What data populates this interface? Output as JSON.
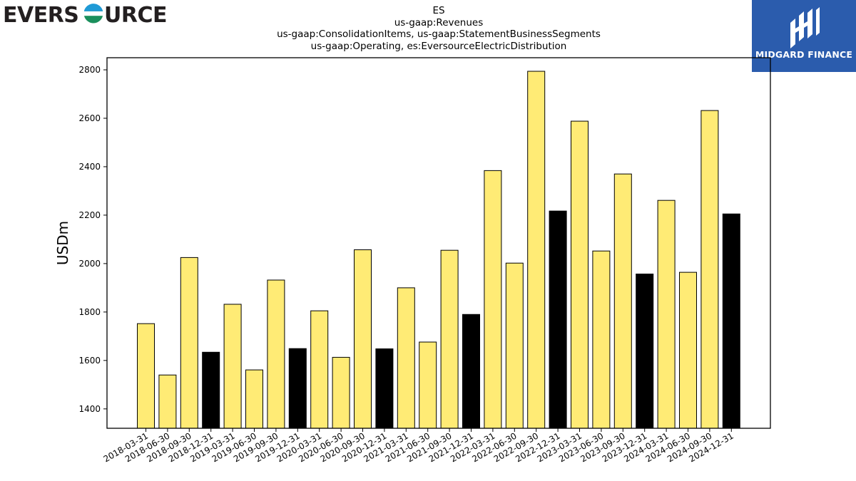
{
  "logos": {
    "left_text": "EVERSOURCE",
    "right_text": "MIDGARD FINANCE",
    "right_color": "#2b5cad"
  },
  "chart_data": {
    "type": "bar",
    "title_lines": [
      "ES",
      "us-gaap:Revenues",
      "us-gaap:ConsolidationItems, us-gaap:StatementBusinessSegments",
      "us-gaap:Operating, es:EversourceElectricDistribution"
    ],
    "xlabel": "",
    "ylabel": "USDm",
    "ylim": [
      1320,
      2850
    ],
    "yticks": [
      1400,
      1600,
      1800,
      2000,
      2200,
      2400,
      2600,
      2800
    ],
    "grid": false,
    "legend": "none",
    "colors": {
      "quarter": "#ffeb75",
      "year_end": "#000000",
      "edge": "#000000"
    },
    "categories": [
      "2018-03-31",
      "2018-06-30",
      "2018-09-30",
      "2018-12-31",
      "2019-03-31",
      "2019-06-30",
      "2019-09-30",
      "2019-12-31",
      "2020-03-31",
      "2020-06-30",
      "2020-09-30",
      "2020-12-31",
      "2021-03-31",
      "2021-06-30",
      "2021-09-30",
      "2021-12-31",
      "2022-03-31",
      "2022-06-30",
      "2022-09-30",
      "2022-12-31",
      "2023-03-31",
      "2023-06-30",
      "2023-09-30",
      "2023-12-31",
      "2024-03-31",
      "2024-06-30",
      "2024-09-30",
      "2024-12-31"
    ],
    "values": [
      1752,
      1540,
      2025,
      1634,
      1832,
      1561,
      1932,
      1649,
      1805,
      1613,
      2057,
      1648,
      1900,
      1676,
      2055,
      1790,
      2384,
      2002,
      2794,
      2217,
      2588,
      2052,
      2370,
      1957,
      2261,
      1964,
      2632,
      2205
    ]
  }
}
